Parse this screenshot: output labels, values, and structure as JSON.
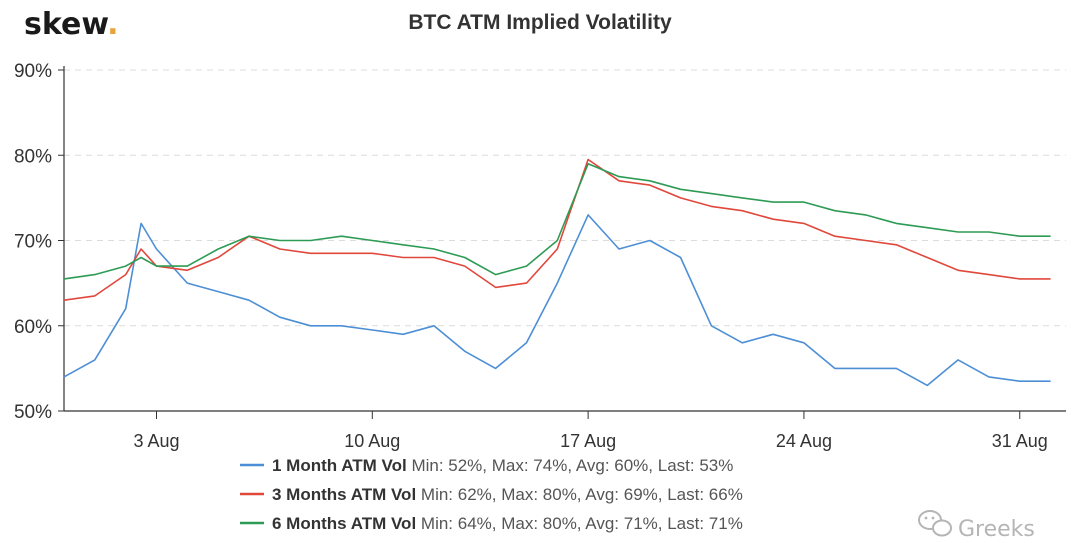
{
  "brand": {
    "name": "skew",
    "dot": "."
  },
  "watermark": {
    "text": "Greeks",
    "icon": "wechat-icon"
  },
  "chart_data": {
    "type": "line",
    "title": "BTC ATM Implied Volatility",
    "xlabel": "",
    "ylabel": "",
    "ylim": [
      50,
      90
    ],
    "yticks": [
      "50%",
      "60%",
      "70%",
      "80%",
      "90%"
    ],
    "y_tick_values": [
      50,
      60,
      70,
      80,
      90
    ],
    "xlim": [
      "2020-07-31",
      "2020-09-01"
    ],
    "xticks": [
      {
        "label": "3 Aug",
        "date": "2020-08-03"
      },
      {
        "label": "10 Aug",
        "date": "2020-08-10"
      },
      {
        "label": "17 Aug",
        "date": "2020-08-17"
      },
      {
        "label": "24 Aug",
        "date": "2020-08-24"
      },
      {
        "label": "31 Aug",
        "date": "2020-08-31"
      }
    ],
    "grid": "horizontal-dashed",
    "legend_position": "bottom",
    "series": [
      {
        "name": "1 Month ATM Vol",
        "stats": "Min: 52%, Max: 74%, Avg: 60%, Last: 53%",
        "color": "#4d8fd6",
        "x": [
          "2020-07-31",
          "2020-08-01",
          "2020-08-02",
          "2020-08-02T12:00",
          "2020-08-03",
          "2020-08-04",
          "2020-08-05",
          "2020-08-06",
          "2020-08-07",
          "2020-08-08",
          "2020-08-09",
          "2020-08-10",
          "2020-08-11",
          "2020-08-12",
          "2020-08-13",
          "2020-08-14",
          "2020-08-15",
          "2020-08-16",
          "2020-08-17",
          "2020-08-18",
          "2020-08-19",
          "2020-08-20",
          "2020-08-21",
          "2020-08-22",
          "2020-08-23",
          "2020-08-24",
          "2020-08-25",
          "2020-08-26",
          "2020-08-27",
          "2020-08-28",
          "2020-08-29",
          "2020-08-30",
          "2020-08-31",
          "2020-09-01"
        ],
        "y": [
          54,
          56,
          62,
          72,
          69,
          65,
          64,
          63,
          61,
          60,
          60,
          59.5,
          59,
          60,
          57,
          55,
          58,
          65,
          73,
          69,
          70,
          68,
          60,
          58,
          59,
          58,
          55,
          55,
          55,
          53,
          56,
          54,
          53.5,
          53.5
        ]
      },
      {
        "name": "3 Months ATM Vol",
        "stats": "Min: 62%, Max: 80%, Avg: 69%, Last: 66%",
        "color": "#e0483c",
        "x": [
          "2020-07-31",
          "2020-08-01",
          "2020-08-02",
          "2020-08-02T12:00",
          "2020-08-03",
          "2020-08-04",
          "2020-08-05",
          "2020-08-06",
          "2020-08-07",
          "2020-08-08",
          "2020-08-09",
          "2020-08-10",
          "2020-08-11",
          "2020-08-12",
          "2020-08-13",
          "2020-08-14",
          "2020-08-15",
          "2020-08-16",
          "2020-08-17",
          "2020-08-18",
          "2020-08-19",
          "2020-08-20",
          "2020-08-21",
          "2020-08-22",
          "2020-08-23",
          "2020-08-24",
          "2020-08-25",
          "2020-08-26",
          "2020-08-27",
          "2020-08-28",
          "2020-08-29",
          "2020-08-30",
          "2020-08-31",
          "2020-09-01"
        ],
        "y": [
          63,
          63.5,
          66,
          69,
          67,
          66.5,
          68,
          70.5,
          69,
          68.5,
          68.5,
          68.5,
          68,
          68,
          67,
          64.5,
          65,
          69,
          79.5,
          77,
          76.5,
          75,
          74,
          73.5,
          72.5,
          72,
          70.5,
          70,
          69.5,
          68,
          66.5,
          66,
          65.5,
          65.5
        ]
      },
      {
        "name": "6 Months ATM Vol",
        "stats": "Min: 64%, Max: 80%, Avg: 71%, Last: 71%",
        "color": "#2e9b55",
        "x": [
          "2020-07-31",
          "2020-08-01",
          "2020-08-02",
          "2020-08-02T12:00",
          "2020-08-03",
          "2020-08-04",
          "2020-08-05",
          "2020-08-06",
          "2020-08-07",
          "2020-08-08",
          "2020-08-09",
          "2020-08-10",
          "2020-08-11",
          "2020-08-12",
          "2020-08-13",
          "2020-08-14",
          "2020-08-15",
          "2020-08-16",
          "2020-08-17",
          "2020-08-18",
          "2020-08-19",
          "2020-08-20",
          "2020-08-21",
          "2020-08-22",
          "2020-08-23",
          "2020-08-24",
          "2020-08-25",
          "2020-08-26",
          "2020-08-27",
          "2020-08-28",
          "2020-08-29",
          "2020-08-30",
          "2020-08-31",
          "2020-09-01"
        ],
        "y": [
          65.5,
          66,
          67,
          68,
          67,
          67,
          69,
          70.5,
          70,
          70,
          70.5,
          70,
          69.5,
          69,
          68,
          66,
          67,
          70,
          79,
          77.5,
          77,
          76,
          75.5,
          75,
          74.5,
          74.5,
          73.5,
          73,
          72,
          71.5,
          71,
          71,
          70.5,
          70.5
        ]
      }
    ]
  }
}
